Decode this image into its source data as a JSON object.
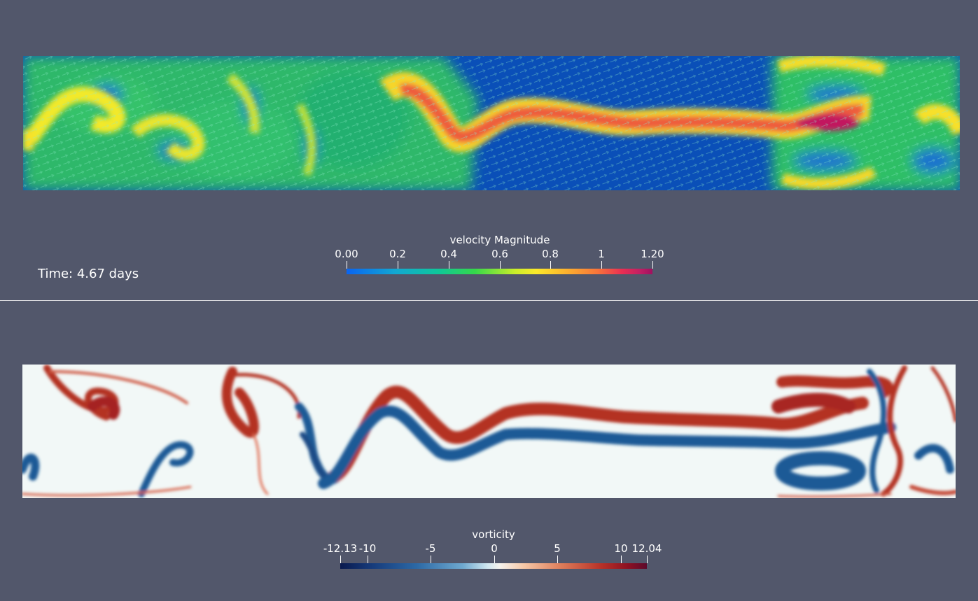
{
  "time_annotation": "Time: 4.67 days",
  "velocity": {
    "title": "velocity Magnitude",
    "range": [
      0.0,
      1.2
    ],
    "ticks": [
      {
        "label": "0.00",
        "value": 0.0
      },
      {
        "label": "0.2",
        "value": 0.2
      },
      {
        "label": "0.4",
        "value": 0.4
      },
      {
        "label": "0.6",
        "value": 0.6
      },
      {
        "label": "0.8",
        "value": 0.8
      },
      {
        "label": "1",
        "value": 1.0
      },
      {
        "label": "1.20",
        "value": 1.2
      }
    ]
  },
  "vorticity": {
    "title": "vorticity",
    "range": [
      -12.13,
      12.04
    ],
    "ticks": [
      {
        "label": "-12.13",
        "value": -12.13
      },
      {
        "label": "-10",
        "value": -10
      },
      {
        "label": "-5",
        "value": -5
      },
      {
        "label": "0",
        "value": 0
      },
      {
        "label": "5",
        "value": 5
      },
      {
        "label": "10",
        "value": 10
      },
      {
        "label": "12.04",
        "value": 12.04
      }
    ]
  },
  "colors": {
    "background": "#52576b",
    "velocity_low": "#0a4fb8",
    "velocity_mid": "#2fc96a",
    "velocity_high": "#c01f64",
    "vorticity_neg": "#1d5a96",
    "vorticity_zero": "#f2f8f7",
    "vorticity_pos": "#b43224"
  }
}
